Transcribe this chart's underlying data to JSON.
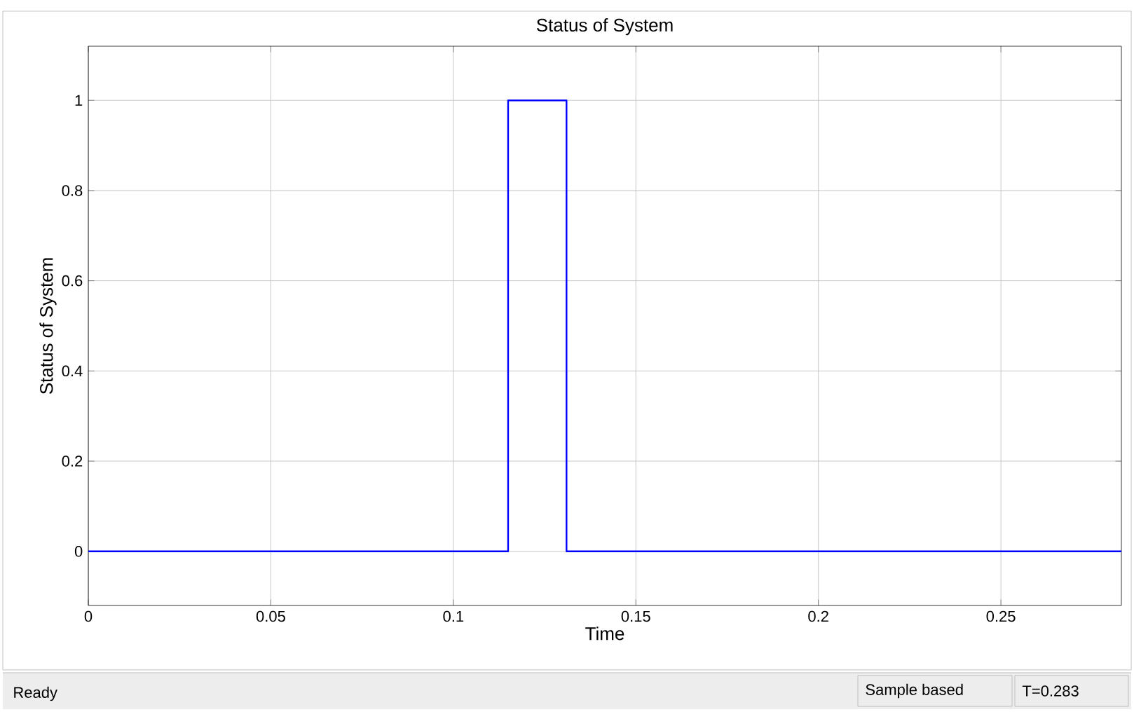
{
  "chart_data": {
    "type": "step",
    "title": "Status of System",
    "xlabel": "Time",
    "ylabel": "Status of System",
    "x": [
      0,
      0.115,
      0.131,
      0.283
    ],
    "series": [
      {
        "color": "#0000ff",
        "values": [
          0,
          1,
          0,
          0
        ]
      }
    ],
    "xlim": [
      0,
      0.283
    ],
    "ylim": [
      -0.12,
      1.12
    ],
    "xticks": [
      0,
      0.05,
      0.1,
      0.15,
      0.2,
      0.25
    ],
    "yticks": [
      0,
      0.2,
      0.4,
      0.6,
      0.8,
      1
    ],
    "grid": true,
    "marker": "none",
    "line_style": "solid",
    "annotations": [
      "Ready",
      "Sample based",
      "T=0.283"
    ]
  }
}
